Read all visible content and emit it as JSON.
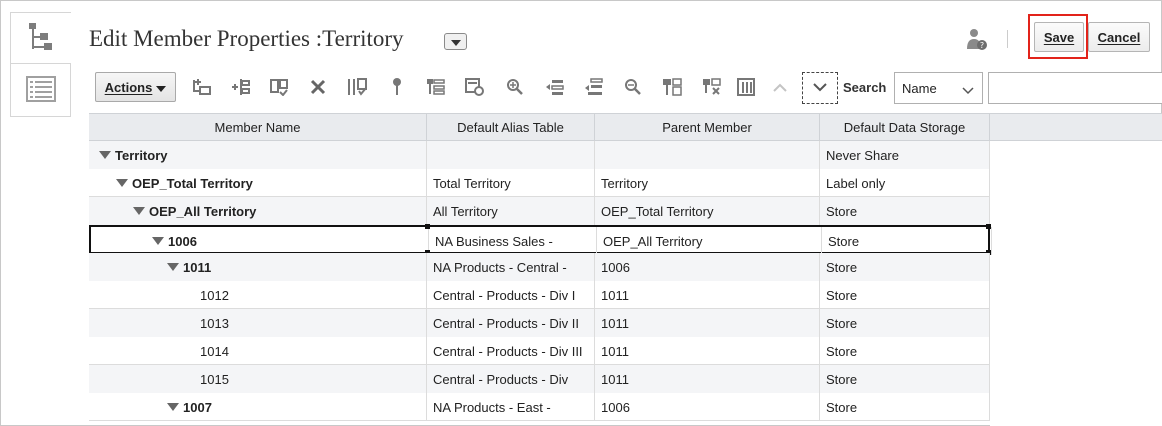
{
  "header": {
    "title": "Edit Member Properties :Territory",
    "save_label": "Save",
    "cancel_label": "Cancel"
  },
  "toolbar": {
    "actions_label": "Actions",
    "search_label": "Search",
    "search_field": "Name",
    "search_placeholder": "",
    "icons": [
      "add-child-icon",
      "add-sibling-icon",
      "copy-member-icon",
      "delete-icon",
      "validate-icon",
      "pin-icon",
      "hierarchy-icon",
      "refresh-icon",
      "zoom-in-icon",
      "move-up-icon",
      "move-down-icon",
      "zoom-out-icon",
      "sort-icon",
      "clear-icon",
      "columns-icon",
      "collapse-up-icon"
    ]
  },
  "grid": {
    "columns": [
      "Member Name",
      "Default Alias Table",
      "Parent Member",
      "Default Data Storage"
    ],
    "rows": [
      {
        "name": "Territory",
        "alias": "",
        "parent": "",
        "storage": "Never Share",
        "level": 0,
        "expanded": true,
        "bold": true
      },
      {
        "name": "OEP_Total Territory",
        "alias": "Total Territory",
        "parent": "Territory",
        "storage": "Label only",
        "level": 1,
        "expanded": true,
        "bold": true
      },
      {
        "name": "OEP_All Territory",
        "alias": "All Territory",
        "parent": "OEP_Total Territory",
        "storage": "Store",
        "level": 2,
        "expanded": true,
        "bold": true
      },
      {
        "name": "1006",
        "alias": "NA Business Sales -",
        "parent": "OEP_All Territory",
        "storage": "Store",
        "level": 3,
        "expanded": true,
        "bold": true,
        "selected": true
      },
      {
        "name": "1011",
        "alias": "NA Products - Central -",
        "parent": "1006",
        "storage": "Store",
        "level": 4,
        "expanded": true,
        "bold": true
      },
      {
        "name": "1012",
        "alias": "Central - Products - Div I",
        "parent": "1011",
        "storage": "Store",
        "level": 5,
        "expanded": false,
        "bold": false
      },
      {
        "name": "1013",
        "alias": "Central - Products - Div II",
        "parent": "1011",
        "storage": "Store",
        "level": 5,
        "expanded": false,
        "bold": false
      },
      {
        "name": "1014",
        "alias": "Central - Products - Div III",
        "parent": "1011",
        "storage": "Store",
        "level": 5,
        "expanded": false,
        "bold": false
      },
      {
        "name": "1015",
        "alias": "Central - Products - Div",
        "parent": "1011",
        "storage": "Store",
        "level": 5,
        "expanded": false,
        "bold": false
      },
      {
        "name": "1007",
        "alias": "NA Products - East -",
        "parent": "1006",
        "storage": "Store",
        "level": 4,
        "expanded": true,
        "bold": true
      }
    ]
  },
  "colors": {
    "highlight": "#e2231a",
    "header_bg": "#e9ebee",
    "alt_row": "#f4f5f7"
  }
}
